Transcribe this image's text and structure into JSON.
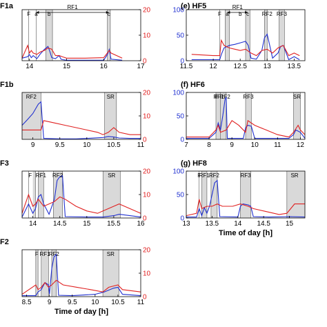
{
  "colors": {
    "blue": "#1f2fd0",
    "red": "#e02020",
    "shade": "#d9d9d9",
    "axis": "#000000"
  },
  "chart_data": [
    {
      "type": "line",
      "title": "F1a",
      "xlim": [
        13.8,
        17
      ],
      "xticks": [
        14,
        15,
        16,
        17
      ],
      "ylim_left": [
        0,
        100
      ],
      "yticks_left": [],
      "ylim_right": [
        0,
        20
      ],
      "yticks_right": [
        0,
        10,
        20
      ],
      "xlabel": "",
      "shaded": [
        [
          14.44,
          14.62
        ],
        [
          16.1,
          16.18
        ]
      ],
      "lines": [
        13.98,
        14.18,
        14.44,
        14.62,
        16.1,
        16.18
      ],
      "labels": [
        {
          "text": "F",
          "x": 13.98
        },
        {
          "text": "a",
          "x": 14.18
        },
        {
          "text": "b",
          "x": 14.53
        },
        {
          "text": "c",
          "x": 16.14
        }
      ],
      "arrow": {
        "from": 14.18,
        "to": 16.14,
        "text": "RF1"
      },
      "series_blue": {
        "x": [
          13.8,
          13.95,
          14.0,
          14.05,
          14.1,
          14.2,
          14.3,
          14.4,
          14.5,
          14.55,
          14.6,
          14.7,
          14.8,
          14.85,
          14.9,
          15.0,
          15.5,
          16.0,
          16.1,
          16.15,
          16.2,
          16.5
        ],
        "y": [
          5,
          8,
          12,
          6,
          10,
          4,
          14,
          22,
          28,
          18,
          6,
          4,
          10,
          3,
          2,
          1,
          1,
          1,
          12,
          22,
          3,
          1
        ]
      },
      "series_red": {
        "x": [
          13.8,
          13.95,
          14.0,
          14.05,
          14.1,
          14.2,
          14.3,
          14.4,
          14.5,
          14.6,
          14.7,
          14.8,
          14.9,
          15.0,
          15.5,
          16.0,
          16.1,
          16.15,
          16.2,
          16.5
        ],
        "y": [
          1,
          6,
          3,
          4,
          3,
          2.5,
          3.5,
          4,
          5,
          4.5,
          2,
          2,
          1.5,
          1,
          1,
          1.2,
          3,
          4,
          3,
          1
        ]
      }
    },
    {
      "type": "line",
      "title": "(e) HF5",
      "xlim": [
        11.5,
        13.7
      ],
      "xticks": [
        11.5,
        12,
        12.5,
        13,
        13.5
      ],
      "ylim_left": [
        0,
        100
      ],
      "yticks_left": [
        0,
        50,
        100
      ],
      "ylim_right": [
        0,
        20
      ],
      "yticks_right": [],
      "xlabel": "",
      "shaded": [
        [
          12.22,
          12.3
        ],
        [
          12.6,
          12.68
        ],
        [
          12.95,
          13.0
        ],
        [
          13.22,
          13.32
        ]
      ],
      "lines": [
        12.12,
        12.22,
        12.3,
        12.6,
        12.68,
        12.95,
        13.0,
        13.22,
        13.32
      ],
      "labels": [
        {
          "text": "F",
          "x": 12.12
        },
        {
          "text": "a",
          "x": 12.26
        },
        {
          "text": "b",
          "x": 12.5
        },
        {
          "text": "c",
          "x": 12.64
        },
        {
          "text": "RF2",
          "x": 13.0
        },
        {
          "text": "RF3",
          "x": 13.27
        }
      ],
      "arrow": {
        "from": 12.26,
        "to": 12.64,
        "text": "RF1"
      },
      "series_blue": {
        "x": [
          11.6,
          12.0,
          12.12,
          12.15,
          12.2,
          12.3,
          12.4,
          12.5,
          12.6,
          12.65,
          12.7,
          12.8,
          12.9,
          12.95,
          13.0,
          13.1,
          13.2,
          13.25,
          13.3,
          13.4,
          13.5,
          13.6
        ],
        "y": [
          2,
          2,
          2,
          12,
          25,
          30,
          32,
          35,
          38,
          30,
          5,
          3,
          20,
          45,
          52,
          5,
          15,
          28,
          30,
          2,
          8,
          2
        ]
      },
      "series_red": {
        "x": [
          11.6,
          12.0,
          12.12,
          12.15,
          12.2,
          12.3,
          12.4,
          12.5,
          12.6,
          12.7,
          12.8,
          12.9,
          13.0,
          13.1,
          13.2,
          13.3,
          13.4,
          13.5,
          13.6
        ],
        "y": [
          2.5,
          2.0,
          2.0,
          8,
          6,
          5,
          4.5,
          4,
          4.5,
          3,
          2,
          4,
          4.5,
          3,
          5,
          6,
          2,
          3,
          2
        ]
      }
    },
    {
      "type": "line",
      "title": "F1b",
      "xlim": [
        8.8,
        11
      ],
      "xticks": [
        9,
        9.5,
        10,
        10.5,
        11
      ],
      "ylim_left": [
        0,
        100
      ],
      "yticks_left": [],
      "ylim_right": [
        0,
        20
      ],
      "yticks_right": [
        0,
        10,
        20
      ],
      "xlabel": "",
      "shaded": [
        [
          8.8,
          9.15
        ],
        [
          10.33,
          10.55
        ]
      ],
      "lines": [
        9.15,
        10.33,
        10.55
      ],
      "labels": [
        {
          "text": "RF2",
          "x": 8.97
        },
        {
          "text": "SR",
          "x": 10.44
        }
      ],
      "arrow": null,
      "series_blue": {
        "x": [
          8.8,
          8.9,
          9.0,
          9.1,
          9.15,
          9.2,
          9.5,
          9.8,
          10.0,
          10.3,
          10.4,
          10.5,
          10.6,
          10.8,
          11.0
        ],
        "y": [
          30,
          42,
          55,
          75,
          80,
          2,
          1,
          1,
          2,
          4,
          6,
          5,
          3,
          2,
          2
        ]
      },
      "series_red": {
        "x": [
          8.8,
          9.0,
          9.15,
          9.2,
          9.4,
          9.6,
          9.8,
          10.0,
          10.2,
          10.3,
          10.4,
          10.5,
          10.6,
          10.8,
          11.0
        ],
        "y": [
          4,
          4,
          4,
          8,
          7,
          6,
          5,
          4,
          3,
          2,
          3,
          5,
          3,
          2,
          2
        ]
      }
    },
    {
      "type": "line",
      "title": "(f) HF6",
      "xlim": [
        7,
        12.2
      ],
      "xticks": [
        7,
        8,
        9,
        10,
        11,
        12
      ],
      "ylim_left": [
        0,
        100
      ],
      "yticks_left": [
        0,
        50,
        100
      ],
      "ylim_right": [
        0,
        20
      ],
      "yticks_right": [],
      "xlabel": "",
      "shaded": [
        [
          8.3,
          8.5
        ],
        [
          8.5,
          8.75
        ],
        [
          9.6,
          9.85
        ],
        [
          11.7,
          12.0
        ]
      ],
      "lines": [
        8.3,
        8.5,
        8.75,
        9.6,
        9.85,
        11.7,
        12.0
      ],
      "labels": [
        {
          "text": "F",
          "x": 8.32
        },
        {
          "text": "RF1",
          "x": 8.42
        },
        {
          "text": "RF2",
          "x": 8.7
        },
        {
          "text": "RF3",
          "x": 9.72
        },
        {
          "text": "SR",
          "x": 11.85
        }
      ],
      "arrow": null,
      "series_blue": {
        "x": [
          7.0,
          8.0,
          8.3,
          8.4,
          8.5,
          8.6,
          8.7,
          8.75,
          8.8,
          9.0,
          9.5,
          9.6,
          9.7,
          9.85,
          10.0,
          11.0,
          11.5,
          11.7,
          11.8,
          12.0,
          12.2
        ],
        "y": [
          2,
          2,
          15,
          35,
          20,
          50,
          85,
          90,
          2,
          2,
          2,
          25,
          30,
          28,
          2,
          2,
          2,
          10,
          20,
          15,
          2
        ]
      },
      "series_red": {
        "x": [
          7.0,
          8.0,
          8.3,
          8.4,
          8.5,
          8.75,
          9.0,
          9.3,
          9.6,
          9.7,
          10.0,
          10.5,
          11.0,
          11.5,
          11.7,
          11.9,
          12.0,
          12.2
        ],
        "y": [
          1,
          1,
          4,
          6,
          3,
          4,
          8,
          6,
          3,
          8,
          6,
          4,
          2,
          1,
          3,
          6,
          4,
          2
        ]
      }
    },
    {
      "type": "line",
      "title": "F3",
      "xlim": [
        13.8,
        16
      ],
      "xticks": [
        14,
        14.5,
        15,
        15.5,
        16
      ],
      "ylim_left": [
        0,
        100
      ],
      "yticks_left": [],
      "ylim_right": [
        0,
        20
      ],
      "yticks_right": [
        0,
        10,
        20
      ],
      "xlabel": "",
      "shaded": [
        [
          14.0,
          14.05
        ],
        [
          14.1,
          14.2
        ],
        [
          14.38,
          14.55
        ],
        [
          15.3,
          15.62
        ]
      ],
      "lines": [
        13.92,
        14.05,
        14.1,
        14.2,
        14.38,
        14.55,
        15.3,
        15.62
      ],
      "labels": [
        {
          "text": "F",
          "x": 13.95
        },
        {
          "text": "RF1",
          "x": 14.15
        },
        {
          "text": "RF2",
          "x": 14.46
        },
        {
          "text": "SR",
          "x": 15.46
        }
      ],
      "arrow": null,
      "series_blue": {
        "x": [
          13.8,
          13.92,
          14.0,
          14.05,
          14.1,
          14.15,
          14.2,
          14.3,
          14.4,
          14.45,
          14.5,
          14.55,
          14.6,
          15.0,
          15.3,
          15.5,
          15.6,
          16.0
        ],
        "y": [
          2,
          30,
          10,
          20,
          45,
          50,
          30,
          8,
          40,
          80,
          88,
          90,
          3,
          2,
          2,
          5,
          8,
          2
        ]
      },
      "series_red": {
        "x": [
          13.8,
          13.92,
          14.0,
          14.05,
          14.1,
          14.2,
          14.3,
          14.4,
          14.5,
          14.6,
          14.8,
          15.0,
          15.2,
          15.3,
          15.5,
          15.6,
          16.0
        ],
        "y": [
          2,
          10,
          5,
          6,
          8,
          5,
          6,
          7,
          9,
          8,
          5,
          3,
          2,
          3,
          5,
          6,
          2
        ]
      }
    },
    {
      "type": "line",
      "title": "(g) HF8",
      "xlim": [
        13,
        15.3
      ],
      "xticks": [
        13,
        13.5,
        14,
        14.5,
        15
      ],
      "ylim_left": [
        0,
        100
      ],
      "yticks_left": [
        0,
        50,
        100
      ],
      "ylim_right": [
        0,
        20
      ],
      "yticks_right": [],
      "xlabel": "Time of day [h]",
      "shaded": [
        [
          13.3,
          13.4
        ],
        [
          13.48,
          13.6
        ],
        [
          14.05,
          14.25
        ],
        [
          14.95,
          15.3
        ]
      ],
      "lines": [
        13.25,
        13.3,
        13.4,
        13.48,
        13.6,
        14.05,
        14.25,
        14.95
      ],
      "labels": [
        {
          "text": "F",
          "x": 13.25
        },
        {
          "text": "RF1",
          "x": 13.35
        },
        {
          "text": "RF2",
          "x": 13.54
        },
        {
          "text": "RF3",
          "x": 14.15
        },
        {
          "text": "SR",
          "x": 15.1
        }
      ],
      "arrow": null,
      "series_blue": {
        "x": [
          13.0,
          13.2,
          13.25,
          13.3,
          13.35,
          13.4,
          13.45,
          13.5,
          13.55,
          13.6,
          13.65,
          14.0,
          14.05,
          14.1,
          14.2,
          14.25,
          14.3,
          14.6,
          15.0,
          15.3
        ],
        "y": [
          2,
          2,
          20,
          5,
          22,
          10,
          25,
          50,
          75,
          80,
          3,
          2,
          25,
          30,
          28,
          25,
          3,
          2,
          3,
          2
        ]
      },
      "series_red": {
        "x": [
          13.0,
          13.2,
          13.25,
          13.3,
          13.4,
          13.5,
          13.6,
          13.7,
          13.9,
          14.05,
          14.2,
          14.3,
          14.5,
          14.8,
          14.95,
          15.1,
          15.3
        ],
        "y": [
          1,
          2,
          8,
          4,
          5,
          5,
          6,
          5,
          5,
          6,
          5,
          4,
          3,
          1.5,
          2,
          6,
          6
        ]
      }
    },
    {
      "type": "line",
      "title": "F2",
      "xlim": [
        8.4,
        11
      ],
      "xticks": [
        8.5,
        9,
        9.5,
        10,
        10.5,
        11
      ],
      "ylim_left": [
        0,
        100
      ],
      "yticks_left": [],
      "ylim_right": [
        0,
        20
      ],
      "yticks_right": [
        0,
        10,
        20
      ],
      "xlabel": "Time of day [h]",
      "shaded": [
        [
          8.7,
          8.75
        ],
        [
          8.82,
          8.98
        ],
        [
          9.05,
          9.15
        ],
        [
          10.17,
          10.52
        ]
      ],
      "lines": [
        8.7,
        8.75,
        8.82,
        8.98,
        9.05,
        9.15,
        10.17,
        10.52
      ],
      "labels": [
        {
          "text": "F",
          "x": 8.72
        },
        {
          "text": "RF1",
          "x": 8.9
        },
        {
          "text": "RF2",
          "x": 9.1
        },
        {
          "text": "SR",
          "x": 10.34
        }
      ],
      "arrow": null,
      "series_blue": {
        "x": [
          8.4,
          8.7,
          8.75,
          8.82,
          8.9,
          8.98,
          9.0,
          9.05,
          9.1,
          9.15,
          9.2,
          9.5,
          10.0,
          10.2,
          10.4,
          10.5,
          10.6,
          11.0
        ],
        "y": [
          2,
          2,
          10,
          15,
          30,
          25,
          5,
          60,
          85,
          90,
          3,
          2,
          5,
          10,
          18,
          20,
          5,
          2
        ]
      },
      "series_red": {
        "x": [
          8.4,
          8.7,
          8.75,
          8.82,
          8.9,
          8.98,
          9.05,
          9.15,
          9.3,
          9.6,
          9.9,
          10.17,
          10.3,
          10.5,
          10.6,
          11.0
        ],
        "y": [
          1,
          5,
          3,
          4,
          6,
          4,
          5,
          7,
          5,
          4,
          3,
          2,
          4,
          5,
          3,
          2
        ]
      }
    }
  ]
}
